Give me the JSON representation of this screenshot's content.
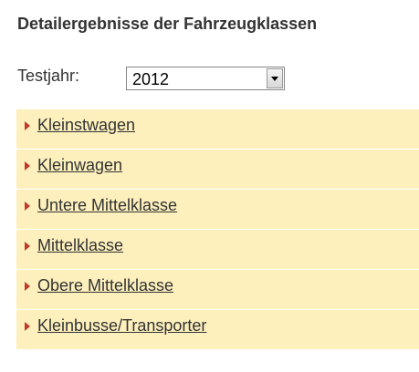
{
  "header": {
    "title": "Detailergebnisse der Fahrzeugklassen"
  },
  "filter": {
    "label": "Testjahr:",
    "selected": "2012"
  },
  "items": [
    "Kleinstwagen",
    "Kleinwagen",
    "Untere Mittelklasse",
    "Mittelklasse",
    "Obere Mittelklasse",
    "Kleinbusse/Transporter"
  ]
}
